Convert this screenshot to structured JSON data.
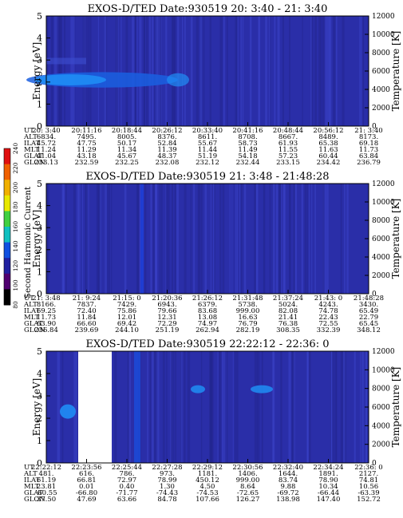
{
  "colors": {
    "plot_bg": "#2a2ea8",
    "hot": "#1e7cf0",
    "cold": "#23207e",
    "gap": "#ffffff"
  },
  "colorbar": {
    "label": "Second Harmonic Current",
    "ticks": [
      "240",
      "220",
      "200",
      "180",
      "160",
      "140",
      "120",
      "100",
      "80"
    ],
    "colors": [
      "#e01010",
      "#f06000",
      "#f0b000",
      "#e8e800",
      "#40d040",
      "#10c0c0",
      "#1050e0",
      "#2020a0",
      "#500070",
      "#000000"
    ]
  },
  "chart_data": [
    {
      "type": "heatmap",
      "title": "EXOS-D/TED   Date:930519  20: 3:40 - 21: 3:40",
      "ylabel": "Energy [eV]",
      "ylim": [
        0,
        5
      ],
      "yticks": [
        "0",
        "1",
        "2",
        "3",
        "4",
        "5"
      ],
      "y2label": "Temperature [K]",
      "y2lim": [
        0,
        12000
      ],
      "y2ticks": [
        "0",
        "2000",
        "4000",
        "6000",
        "8000",
        "10000",
        "12000"
      ],
      "grid": false,
      "table_rows": [
        {
          "label": "UT",
          "values": [
            "20: 3:40",
            "20:11:16",
            "20:18:44",
            "20:26:12",
            "20:33:40",
            "20:41:16",
            "20:48:44",
            "20:56:12",
            "21: 3:40"
          ]
        },
        {
          "label": "ALT",
          "values": [
            "6834.",
            "7495.",
            "8005.",
            "8376.",
            "8611.",
            "8708.",
            "8667.",
            "8489.",
            "8173."
          ]
        },
        {
          "label": "ILAT",
          "values": [
            "45.72",
            "47.75",
            "50.17",
            "52.84",
            "55.67",
            "58.73",
            "61.93",
            "65.38",
            "69.18"
          ]
        },
        {
          "label": "MLT",
          "values": [
            "11.24",
            "11.29",
            "11.34",
            "11.39",
            "11.44",
            "11.49",
            "11.55",
            "11.63",
            "11.73"
          ]
        },
        {
          "label": "GLAT",
          "values": [
            "41.04",
            "43.18",
            "45.67",
            "48.37",
            "51.19",
            "54.18",
            "57.23",
            "60.44",
            "63.84"
          ]
        },
        {
          "label": "GLON",
          "values": [
            "233.13",
            "232.59",
            "232.25",
            "232.08",
            "232.12",
            "232.44",
            "233.15",
            "234.42",
            "236.79"
          ]
        }
      ]
    },
    {
      "type": "heatmap",
      "title": "EXOS-D/TED   Date:930519  21: 3:48 - 21:48:28",
      "ylabel": "Energy [eV]",
      "ylim": [
        0,
        5
      ],
      "yticks": [
        "0",
        "1",
        "2",
        "3",
        "4",
        "5"
      ],
      "y2label": "Temperature [K]",
      "y2lim": [
        0,
        12000
      ],
      "y2ticks": [
        "0",
        "2000",
        "4000",
        "6000",
        "8000",
        "10000",
        "12000"
      ],
      "grid": false,
      "table_rows": [
        {
          "label": "UT",
          "values": [
            "21: 3:48",
            "21: 9:24",
            "21:15: 0",
            "21:20:36",
            "21:26:12",
            "21:31:48",
            "21:37:24",
            "21:43: 0",
            "21:48:28"
          ]
        },
        {
          "label": "ALT",
          "values": [
            "8166.",
            "7837.",
            "7429.",
            "6943.",
            "6379.",
            "5738.",
            "5024.",
            "4243.",
            "3430."
          ]
        },
        {
          "label": "ILAT",
          "values": [
            "69.25",
            "72.40",
            "75.86",
            "79.66",
            "83.68",
            "999.00",
            "82.08",
            "74.78",
            "65.49"
          ]
        },
        {
          "label": "MLT",
          "values": [
            "11.73",
            "11.84",
            "12.01",
            "12.31",
            "13.08",
            "16.63",
            "21.41",
            "22.43",
            "22.79"
          ]
        },
        {
          "label": "GLAT",
          "values": [
            "63.90",
            "66.60",
            "69.42",
            "72.29",
            "74.97",
            "76.79",
            "76.38",
            "72.55",
            "65.45"
          ]
        },
        {
          "label": "GLON",
          "values": [
            "236.84",
            "239.69",
            "244.10",
            "251.19",
            "262.94",
            "282.19",
            "308.35",
            "332.39",
            "348.12"
          ]
        }
      ]
    },
    {
      "type": "heatmap",
      "title": "EXOS-D/TED   Date:930519  22:22:12 - 22:36: 0",
      "ylabel": "Energy [eV]",
      "ylim": [
        0,
        5
      ],
      "yticks": [
        "0",
        "1",
        "2",
        "3",
        "4",
        "5"
      ],
      "y2label": "Temperature [K]",
      "y2lim": [
        0,
        12000
      ],
      "y2ticks": [
        "0",
        "2000",
        "4000",
        "6000",
        "8000",
        "10000",
        "12000"
      ],
      "grid": false,
      "table_rows": [
        {
          "label": "UT",
          "values": [
            "22:22:12",
            "22:23:56",
            "22:25:44",
            "22:27:28",
            "22:29:12",
            "22:30:56",
            "22:32:40",
            "22:34:24",
            "22:36: 0"
          ]
        },
        {
          "label": "ALT",
          "values": [
            "481.",
            "616.",
            "786.",
            "973.",
            "1181.",
            "1406.",
            "1644.",
            "1891.",
            "2127."
          ]
        },
        {
          "label": "ILAT",
          "values": [
            "61.19",
            "66.81",
            "72.97",
            "78.99",
            "450.12",
            "999.00",
            "83.74",
            "78.90",
            "74.81"
          ]
        },
        {
          "label": "MLT",
          "values": [
            "23.81",
            "0.01",
            "0.40",
            "1.30",
            "4.50",
            "8.64",
            "9.88",
            "10.34",
            "10.56"
          ]
        },
        {
          "label": "GLAT",
          "values": [
            "-60.55",
            "-66.80",
            "-71.77",
            "-74.43",
            "-74.53",
            "-72.65",
            "-69.72",
            "-66.44",
            "-63.39"
          ]
        },
        {
          "label": "GLON",
          "values": [
            "37.50",
            "47.69",
            "63.66",
            "84.78",
            "107.66",
            "126.27",
            "138.98",
            "147.40",
            "152.72"
          ]
        }
      ]
    }
  ]
}
